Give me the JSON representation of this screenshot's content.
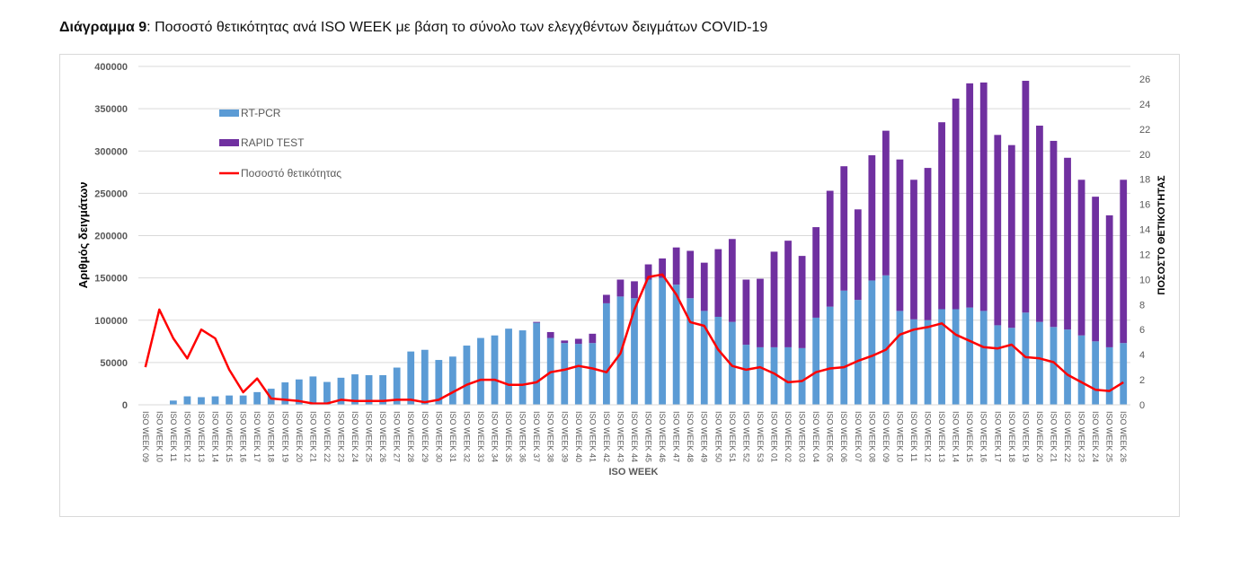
{
  "title": {
    "bold": "Διάγραμμα 9",
    "rest": ": Ποσοστό θετικότητας ανά ISO WEEK με βάση το σύνολο των ελεγχθέντων δειγμάτων COVID-19"
  },
  "chart_data": {
    "type": "bar",
    "stacked": true,
    "title": "Διάγραμμα 9: Ποσοστό θετικότητας ανά ISO WEEK με βάση το σύνολο των ελεγχθέντων δειγμάτων COVID-19",
    "xlabel": "ISO WEEK",
    "ylabel": "Αριθμός δειγμάτων",
    "y2label": "ΠΟΣΟΣΤΟ ΘΕΤΙΚΟΤΗΤΑΣ",
    "ylim": [
      0,
      400000
    ],
    "y2lim": [
      0,
      26
    ],
    "yticks": [
      "0",
      "50000",
      "100000",
      "150000",
      "200000",
      "250000",
      "300000",
      "350000",
      "400000"
    ],
    "y2ticks": [
      "0",
      "2",
      "4",
      "6",
      "8",
      "10",
      "12",
      "14",
      "16",
      "18",
      "20",
      "22",
      "24",
      "26"
    ],
    "grid": true,
    "legend_position": "top-left",
    "colors": {
      "rtpcr": "#5b9bd5",
      "rapid": "#7030a0",
      "positivity": "#ff0000",
      "grid": "#d9d9d9"
    },
    "categories": [
      "ISO WEEK 09",
      "ISO WEEK 10",
      "ISO WEEK 11",
      "ISO WEEK 12",
      "ISO WEEK 13",
      "ISO WEEK 14",
      "ISO WEEK 15",
      "ISO WEEK 16",
      "ISO WEEK 17",
      "ISO WEEK 18",
      "ISO WEEK 19",
      "ISO WEEK 20",
      "ISO WEEK 21",
      "ISO WEEK 22",
      "ISO WEEK 23",
      "ISO WEEK 24",
      "ISO WEEK 25",
      "ISO WEEK 26",
      "ISO WEEK 27",
      "ISO WEEK 28",
      "ISO WEEK 29",
      "ISO WEEK 30",
      "ISO WEEK 31",
      "ISO WEEK 32",
      "ISO WEEK 33",
      "ISO WEEK 34",
      "ISO WEEK 35",
      "ISO WEEK 36",
      "ISO WEEK 37",
      "ISO WEEK 38",
      "ISO WEEK 39",
      "ISO WEEK 40",
      "ISO WEEK 41",
      "ISO WEEK 42",
      "ISO WEEK 43",
      "ISO WEEK 44",
      "ISO WEEK 45",
      "ISO WEEK 46",
      "ISO WEEK 47",
      "ISO WEEK 48",
      "ISO WEEK 49",
      "ISO WEEK 50",
      "ISO WEEK 51",
      "ISO WEEK 52",
      "ISO WEEK 53",
      "ISO WEEK 01",
      "ISO WEEK 02",
      "ISO WEEK 03",
      "ISO WEEK 04",
      "ISO WEEK 05",
      "ISO WEEK 06",
      "ISO WEEK 07",
      "ISO WEEK 08",
      "ISO WEEK 09",
      "ISO WEEK 10",
      "ISO WEEK 11",
      "ISO WEEK 12",
      "ISO WEEK 13",
      "ISO WEEK 14",
      "ISO WEEK 15",
      "ISO WEEK 16",
      "ISO WEEK 17",
      "ISO WEEK 18",
      "ISO WEEK 19",
      "ISO WEEK 20",
      "ISO WEEK 21",
      "ISO WEEK 22",
      "ISO WEEK 23",
      "ISO WEEK 24",
      "ISO WEEK 25",
      "ISO WEEK 26"
    ],
    "series": [
      {
        "name": "RT-PCR",
        "type": "bar",
        "axis": "left",
        "values": [
          0,
          0,
          5000,
          10000,
          9000,
          10000,
          11000,
          11000,
          15000,
          19000,
          26500,
          30000,
          33500,
          27000,
          32000,
          36000,
          35000,
          35000,
          44000,
          63000,
          65000,
          53000,
          57000,
          70000,
          79000,
          82000,
          90000,
          88000,
          97000,
          79000,
          73000,
          72000,
          73000,
          120000,
          128000,
          126000,
          148000,
          150000,
          142000,
          126000,
          111000,
          104000,
          98000,
          71000,
          68000,
          68000,
          68000,
          67000,
          103000,
          116000,
          135000,
          124000,
          147000,
          153000,
          111000,
          101000,
          100000,
          113000,
          113000,
          115000,
          111000,
          94000,
          91000,
          109000,
          98000,
          92000,
          89000,
          82000,
          75000,
          68000,
          73000
        ]
      },
      {
        "name": "RAPID TEST",
        "type": "bar",
        "axis": "left",
        "values": [
          0,
          0,
          0,
          0,
          0,
          0,
          0,
          0,
          0,
          0,
          0,
          0,
          0,
          0,
          0,
          0,
          0,
          0,
          0,
          0,
          0,
          0,
          0,
          0,
          0,
          0,
          0,
          0,
          1000,
          7000,
          3000,
          6000,
          11000,
          10000,
          20000,
          20000,
          18000,
          23000,
          44000,
          56000,
          57000,
          80000,
          98000,
          77000,
          81000,
          113000,
          126000,
          109000,
          107000,
          137000,
          147000,
          107000,
          148000,
          171000,
          179000,
          165000,
          180000,
          221000,
          249000,
          265000,
          270000,
          225000,
          216000,
          274000,
          232000,
          220000,
          203000,
          184000,
          171000,
          156000,
          193000
        ]
      },
      {
        "name": "Ποσοστό θετικότητας",
        "type": "line",
        "axis": "right",
        "values": [
          3.0,
          7.6,
          5.3,
          3.7,
          6.0,
          5.3,
          2.8,
          1.0,
          2.1,
          0.5,
          0.4,
          0.3,
          0.1,
          0.1,
          0.4,
          0.3,
          0.3,
          0.3,
          0.4,
          0.4,
          0.2,
          0.4,
          1.0,
          1.6,
          2.0,
          2.0,
          1.6,
          1.6,
          1.8,
          2.6,
          2.8,
          3.1,
          2.9,
          2.6,
          4.1,
          7.6,
          10.2,
          10.4,
          8.8,
          6.6,
          6.3,
          4.4,
          3.1,
          2.8,
          3.0,
          2.5,
          1.8,
          1.9,
          2.6,
          2.9,
          3.0,
          3.5,
          3.9,
          4.4,
          5.6,
          6.0,
          6.2,
          6.5,
          5.6,
          5.1,
          4.6,
          4.5,
          4.8,
          3.8,
          3.7,
          3.4,
          2.4,
          1.8,
          1.2,
          1.1,
          1.8
        ]
      }
    ]
  }
}
